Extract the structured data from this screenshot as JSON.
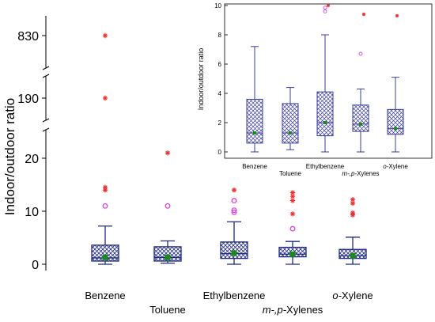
{
  "chart_data": [
    {
      "type": "box",
      "ylabel": "Indoor/outdoor ratio",
      "axis_break": true,
      "y_ticks_lower": [
        "0",
        "10",
        "20"
      ],
      "y_ticks_upper": [
        "190",
        "830"
      ],
      "categories": [
        "Benzene",
        "Toluene",
        "Ethylbenzene",
        "m-,p-Xylenes",
        "o-Xylene"
      ],
      "category_labels": [
        {
          "pre": "",
          "ital": "",
          "post": "Benzene"
        },
        {
          "pre": "",
          "ital": "",
          "post": "Toluene"
        },
        {
          "pre": "",
          "ital": "",
          "post": "Ethylbenzene"
        },
        {
          "pre": "",
          "ital": "m-,p-",
          "post": "Xylenes"
        },
        {
          "pre": "",
          "ital": "o-",
          "post": "Xylene"
        }
      ],
      "boxes": [
        {
          "name": "Benzene",
          "whisker_low": 0.0,
          "q1": 0.6,
          "median": 1.2,
          "q3": 3.6,
          "whisker_high": 7.2,
          "mean": 1.3
        },
        {
          "name": "Toluene",
          "whisker_low": 0.2,
          "q1": 0.6,
          "median": 1.3,
          "q3": 3.3,
          "whisker_high": 4.4,
          "mean": 1.3
        },
        {
          "name": "Ethylbenzene",
          "whisker_low": 0.0,
          "q1": 1.1,
          "median": 2.0,
          "q3": 4.2,
          "whisker_high": 8.0,
          "mean": 2.1
        },
        {
          "name": "m-,p-Xylenes",
          "whisker_low": 0.0,
          "q1": 1.4,
          "median": 1.9,
          "q3": 3.2,
          "whisker_high": 4.3,
          "mean": 1.9
        },
        {
          "name": "o-Xylene",
          "whisker_low": 0.0,
          "q1": 1.1,
          "median": 1.6,
          "q3": 2.8,
          "whisker_high": 5.1,
          "mean": 1.6
        }
      ],
      "outliers": [
        {
          "category": "Benzene",
          "value": 11.0,
          "kind": "circle"
        },
        {
          "category": "Benzene",
          "value": 14.0,
          "kind": "star"
        },
        {
          "category": "Benzene",
          "value": 14.5,
          "kind": "star"
        },
        {
          "category": "Benzene",
          "value": 190,
          "kind": "star"
        },
        {
          "category": "Benzene",
          "value": 830,
          "kind": "star"
        },
        {
          "category": "Toluene",
          "value": 11.0,
          "kind": "circle"
        },
        {
          "category": "Toluene",
          "value": 21.0,
          "kind": "star"
        },
        {
          "category": "Ethylbenzene",
          "value": 9.8,
          "kind": "circle"
        },
        {
          "category": "Ethylbenzene",
          "value": 10.2,
          "kind": "circle"
        },
        {
          "category": "Ethylbenzene",
          "value": 12.0,
          "kind": "circle"
        },
        {
          "category": "Ethylbenzene",
          "value": 14.0,
          "kind": "star"
        },
        {
          "category": "m-,p-Xylenes",
          "value": 6.7,
          "kind": "circle"
        },
        {
          "category": "m-,p-Xylenes",
          "value": 9.5,
          "kind": "star"
        },
        {
          "category": "m-,p-Xylenes",
          "value": 12.0,
          "kind": "star"
        },
        {
          "category": "m-,p-Xylenes",
          "value": 12.8,
          "kind": "star"
        },
        {
          "category": "m-,p-Xylenes",
          "value": 13.5,
          "kind": "star"
        },
        {
          "category": "o-Xylene",
          "value": 9.3,
          "kind": "star"
        },
        {
          "category": "o-Xylene",
          "value": 9.7,
          "kind": "star"
        },
        {
          "category": "o-Xylene",
          "value": 11.5,
          "kind": "star"
        },
        {
          "category": "o-Xylene",
          "value": 12.2,
          "kind": "star"
        }
      ],
      "colors": {
        "box_edge": "#1f2a80",
        "hatch": "#1f2a80",
        "mean": "#1a8a1a",
        "star": "#e83030",
        "circle": "#e040e0"
      }
    },
    {
      "type": "box",
      "ylabel": "Indoor/outdoor ratio",
      "ylim": [
        0,
        10
      ],
      "y_ticks": [
        "0",
        "2",
        "4",
        "6",
        "8",
        "10"
      ],
      "categories": [
        "Benzene",
        "Toluene",
        "Ethylbenzene",
        "m-,p-Xylenes",
        "o-Xylene"
      ],
      "category_labels": [
        {
          "pre": "",
          "ital": "",
          "post": "Benzene"
        },
        {
          "pre": "",
          "ital": "",
          "post": "Toluene"
        },
        {
          "pre": "",
          "ital": "",
          "post": "Ethylbenzene"
        },
        {
          "pre": "",
          "ital": "m-,p-",
          "post": "Xylenes"
        },
        {
          "pre": "",
          "ital": "o-",
          "post": "Xylene"
        }
      ],
      "boxes": [
        {
          "name": "Benzene",
          "whisker_low": 0.0,
          "q1": 0.6,
          "median": 1.3,
          "q3": 3.6,
          "whisker_high": 7.2,
          "mean": 1.3
        },
        {
          "name": "Toluene",
          "whisker_low": 0.15,
          "q1": 0.6,
          "median": 1.3,
          "q3": 3.3,
          "whisker_high": 4.4,
          "mean": 1.3
        },
        {
          "name": "Ethylbenzene",
          "whisker_low": 0.0,
          "q1": 1.1,
          "median": 2.0,
          "q3": 4.1,
          "whisker_high": 8.0,
          "mean": 2.0
        },
        {
          "name": "m-,p-Xylenes",
          "whisker_low": 0.0,
          "q1": 1.4,
          "median": 1.9,
          "q3": 3.2,
          "whisker_high": 4.3,
          "mean": 1.9
        },
        {
          "name": "o-Xylene",
          "whisker_low": 0.0,
          "q1": 1.2,
          "median": 1.6,
          "q3": 2.9,
          "whisker_high": 5.1,
          "mean": 1.6
        }
      ],
      "outliers": [
        {
          "category": "Ethylbenzene",
          "value": 9.6,
          "kind": "circle"
        },
        {
          "category": "Ethylbenzene",
          "value": 9.85,
          "kind": "circle"
        },
        {
          "category": "Ethylbenzene",
          "value": 10.0,
          "kind": "star"
        },
        {
          "category": "m-,p-Xylenes",
          "value": 6.7,
          "kind": "circle"
        },
        {
          "category": "m-,p-Xylenes",
          "value": 9.4,
          "kind": "star"
        },
        {
          "category": "o-Xylene",
          "value": 9.3,
          "kind": "star"
        }
      ],
      "colors": {
        "box_edge": "#3d3d9c",
        "hatch": "#3d3d9c",
        "mean": "#1a8a1a",
        "star": "#e83030",
        "circle": "#e040e0"
      }
    }
  ]
}
